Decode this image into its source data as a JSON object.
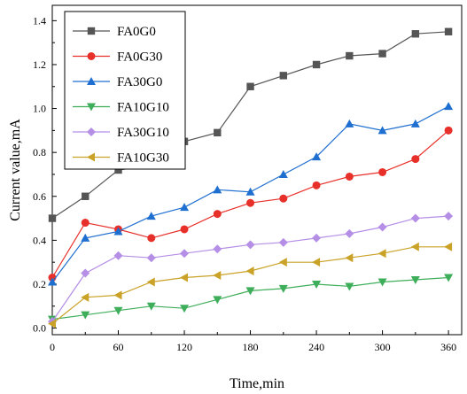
{
  "chart_data": {
    "type": "line",
    "xlabel": "Time,min",
    "ylabel": "Current value,mA",
    "xlim": [
      0,
      372
    ],
    "ylim": [
      -0.03,
      1.47
    ],
    "xticks": [
      0,
      60,
      120,
      180,
      240,
      300,
      360
    ],
    "yticks": [
      0.0,
      0.2,
      0.4,
      0.6,
      0.8,
      1.0,
      1.2,
      1.4
    ],
    "xtick_labels": [
      "0",
      "60",
      "120",
      "180",
      "240",
      "300",
      "360"
    ],
    "ytick_labels": [
      "0.0",
      "0.2",
      "0.4",
      "0.6",
      "0.8",
      "1.0",
      "1.2",
      "1.4"
    ],
    "x": [
      0,
      30,
      60,
      90,
      120,
      150,
      180,
      210,
      240,
      270,
      300,
      330,
      360
    ],
    "grid": false,
    "legend_position": "top-left",
    "series": [
      {
        "name": "FA0G0",
        "color": "#555555",
        "marker": "square",
        "values": [
          0.5,
          0.6,
          0.72,
          0.74,
          0.85,
          0.89,
          1.1,
          1.15,
          1.2,
          1.24,
          1.25,
          1.34,
          1.35
        ]
      },
      {
        "name": "FA0G30",
        "color": "#e8302a",
        "marker": "circle",
        "values": [
          0.23,
          0.48,
          0.45,
          0.41,
          0.45,
          0.52,
          0.57,
          0.59,
          0.65,
          0.69,
          0.71,
          0.77,
          0.9
        ]
      },
      {
        "name": "FA30G0",
        "color": "#1f6fd0",
        "marker": "triangle-up",
        "values": [
          0.21,
          0.41,
          0.44,
          0.51,
          0.55,
          0.63,
          0.62,
          0.7,
          0.78,
          0.93,
          0.9,
          0.93,
          1.01
        ]
      },
      {
        "name": "FA10G10",
        "color": "#3fae5a",
        "marker": "triangle-down",
        "values": [
          0.04,
          0.06,
          0.08,
          0.1,
          0.09,
          0.13,
          0.17,
          0.18,
          0.2,
          0.19,
          0.21,
          0.22,
          0.23
        ]
      },
      {
        "name": "FA30G10",
        "color": "#b58ee6",
        "marker": "diamond",
        "values": [
          0.03,
          0.25,
          0.33,
          0.32,
          0.34,
          0.36,
          0.38,
          0.39,
          0.41,
          0.43,
          0.46,
          0.5,
          0.51
        ]
      },
      {
        "name": "FA10G30",
        "color": "#c9a227",
        "marker": "triangle-left",
        "values": [
          0.02,
          0.14,
          0.15,
          0.21,
          0.23,
          0.24,
          0.26,
          0.3,
          0.3,
          0.32,
          0.34,
          0.37,
          0.37
        ]
      }
    ]
  }
}
